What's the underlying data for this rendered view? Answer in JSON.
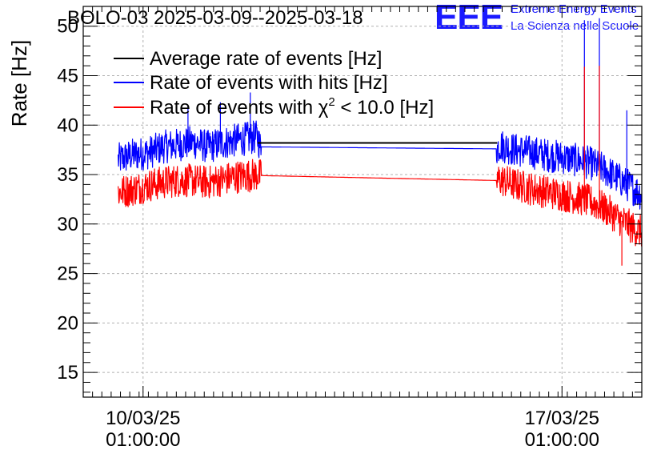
{
  "header": {
    "title": "BOLO-03 2025-03-09--2025-03-18",
    "logo_mark": "EEE",
    "logo_line1": "Extreme Energy Events",
    "logo_line2": "La Scienza nelle Scuole"
  },
  "colors": {
    "average": "#000000",
    "hits": "#0000ff",
    "chi2": "#ff0000",
    "logo": "#1a1aff",
    "grid": "#b0b0b0"
  },
  "chart_data": {
    "type": "line",
    "title": "BOLO-03 2025-03-09--2025-03-18",
    "ylabel": "Rate [Hz]",
    "xlabel": "",
    "ylim": [
      12.5,
      52
    ],
    "xlim": [
      "2025-03-09 01:00",
      "2025-03-18 09:00"
    ],
    "yticks": [
      15,
      20,
      25,
      30,
      35,
      40,
      45,
      50
    ],
    "xticks": [
      {
        "x": "2025-03-10 01:00",
        "line1": "10/03/25",
        "line2": "01:00:00"
      },
      {
        "x": "2025-03-17 01:00",
        "line1": "17/03/25",
        "line2": "01:00:00"
      }
    ],
    "grid": true,
    "legend_position": "top-left",
    "series": [
      {
        "name": "Average rate of events [Hz]",
        "color": "#000000",
        "points": [
          [
            "2025-03-11 23:00",
            38.2
          ],
          [
            "2025-03-15 23:00",
            38.2
          ]
        ]
      },
      {
        "name": "Rate of events with hits [Hz]",
        "color": "#0000ff",
        "points": [
          [
            "2025-03-09 15:00",
            36.5
          ],
          [
            "2025-03-09 21:00",
            37.0
          ],
          [
            "2025-03-10 03:00",
            37.2
          ],
          [
            "2025-03-10 09:00",
            37.8
          ],
          [
            "2025-03-10 15:00",
            38.0
          ],
          [
            "2025-03-10 21:00",
            38.3
          ],
          [
            "2025-03-11 03:00",
            37.8
          ],
          [
            "2025-03-11 09:00",
            38.2
          ],
          [
            "2025-03-11 15:00",
            38.5
          ],
          [
            "2025-03-11 23:00",
            38.8
          ],
          [
            "2025-03-12 00:00",
            37.8
          ],
          [
            "2025-03-15 23:00",
            37.6
          ],
          [
            "2025-03-16 00:00",
            38.0
          ],
          [
            "2025-03-16 06:00",
            37.5
          ],
          [
            "2025-03-16 12:00",
            37.3
          ],
          [
            "2025-03-16 18:00",
            37.0
          ],
          [
            "2025-03-17 00:00",
            36.8
          ],
          [
            "2025-03-17 06:00",
            36.5
          ],
          [
            "2025-03-17 12:00",
            36.2
          ],
          [
            "2025-03-17 18:00",
            35.5
          ],
          [
            "2025-03-18 00:00",
            34.5
          ],
          [
            "2025-03-18 06:00",
            33.5
          ],
          [
            "2025-03-18 09:00",
            33.0
          ]
        ],
        "spikes": [
          [
            "2025-03-10 19:00",
            42.0
          ],
          [
            "2025-03-11 08:00",
            42.3
          ],
          [
            "2025-03-11 20:00",
            43.3
          ],
          [
            "2025-03-17 10:00",
            50.6
          ],
          [
            "2025-03-17 16:00",
            50.8
          ],
          [
            "2025-03-18 03:00",
            41.5
          ]
        ]
      },
      {
        "name": "Rate of events with χ2 < 10.0 [Hz]",
        "color": "#ff0000",
        "points": [
          [
            "2025-03-09 15:00",
            33.2
          ],
          [
            "2025-03-09 21:00",
            33.5
          ],
          [
            "2025-03-10 03:00",
            33.9
          ],
          [
            "2025-03-10 09:00",
            34.2
          ],
          [
            "2025-03-10 15:00",
            34.4
          ],
          [
            "2025-03-10 21:00",
            34.4
          ],
          [
            "2025-03-11 03:00",
            34.2
          ],
          [
            "2025-03-11 09:00",
            34.5
          ],
          [
            "2025-03-11 15:00",
            34.8
          ],
          [
            "2025-03-11 23:00",
            35.0
          ],
          [
            "2025-03-12 00:00",
            34.9
          ],
          [
            "2025-03-15 23:00",
            34.4
          ],
          [
            "2025-03-16 00:00",
            34.5
          ],
          [
            "2025-03-16 06:00",
            34.0
          ],
          [
            "2025-03-16 12:00",
            33.6
          ],
          [
            "2025-03-16 18:00",
            33.3
          ],
          [
            "2025-03-17 00:00",
            33.0
          ],
          [
            "2025-03-17 06:00",
            32.7
          ],
          [
            "2025-03-17 12:00",
            32.3
          ],
          [
            "2025-03-17 18:00",
            31.6
          ],
          [
            "2025-03-18 00:00",
            30.5
          ],
          [
            "2025-03-18 06:00",
            29.5
          ],
          [
            "2025-03-18 09:00",
            29.2
          ]
        ],
        "spikes": [
          [
            "2025-03-17 10:00",
            45.9
          ],
          [
            "2025-03-17 16:00",
            46.0
          ],
          [
            "2025-03-18 01:00",
            25.8
          ]
        ]
      }
    ]
  }
}
